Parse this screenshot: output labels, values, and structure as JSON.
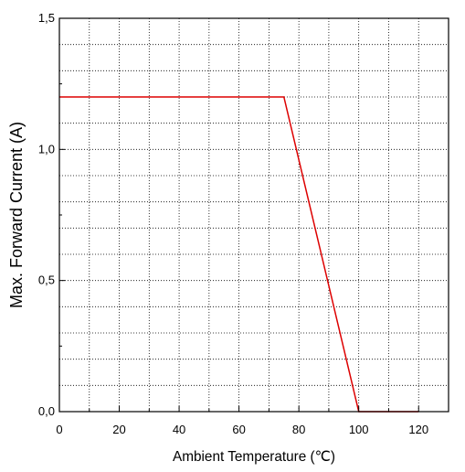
{
  "chart_data": {
    "type": "line",
    "title": "",
    "xlabel": "Ambient Temperature (℃)",
    "ylabel": "Max. Forward Current (A)",
    "xlim": [
      0,
      130
    ],
    "ylim": [
      0,
      1.5
    ],
    "x_ticks": [
      0,
      20,
      40,
      60,
      80,
      100,
      120
    ],
    "x_tick_labels": [
      "0",
      "20",
      "40",
      "60",
      "80",
      "100",
      "120"
    ],
    "y_ticks": [
      0,
      0.5,
      1.0,
      1.5
    ],
    "y_tick_labels": [
      "0,0",
      "0,5",
      "1,0",
      "1,5"
    ],
    "grid": true,
    "grid_style": "dotted",
    "series": [
      {
        "color": "#dd0000",
        "x": [
          0,
          75,
          100,
          120
        ],
        "y": [
          1.2,
          1.2,
          0,
          0
        ]
      }
    ]
  }
}
